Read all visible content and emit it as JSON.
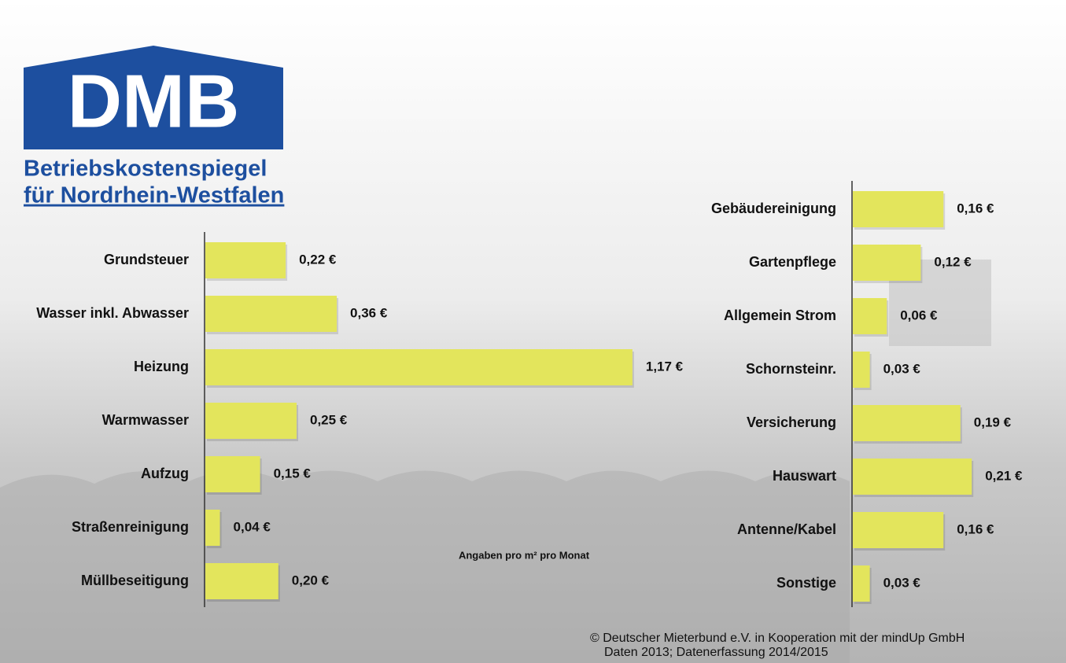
{
  "logo": {
    "mark": "DMB",
    "line1": "Betriebskostenspiegel",
    "line2": "für Nordrhein-Westfalen"
  },
  "note": "Angaben pro m² pro Monat",
  "source": {
    "line1": "© Deutscher Mieterbund e.V. in Kooperation mit der mindUp GmbH",
    "line2": "Daten 2013; Datenerfassung 2014/2015"
  },
  "chart_data": [
    {
      "type": "bar",
      "orientation": "horizontal",
      "color": "#e3e55c",
      "categories": [
        "Grundsteuer",
        "Wasser inkl. Abwasser",
        "Heizung",
        "Warmwasser",
        "Aufzug",
        "Straßenreinigung",
        "Müllbeseitigung"
      ],
      "values": [
        0.22,
        0.36,
        1.17,
        0.25,
        0.15,
        0.04,
        0.2
      ],
      "value_labels": [
        "0,22 €",
        "0,36 €",
        "1,17 €",
        "0,25 €",
        "0,15 €",
        "0,04 €",
        "0,20 €"
      ]
    },
    {
      "type": "bar",
      "orientation": "horizontal",
      "color": "#e3e55c",
      "categories": [
        "Gebäudereinigung",
        "Gartenpflege",
        "Allgemein Strom",
        "Schornsteinr.",
        "Versicherung",
        "Hauswart",
        "Antenne/Kabel",
        "Sonstige"
      ],
      "values": [
        0.16,
        0.12,
        0.06,
        0.03,
        0.19,
        0.21,
        0.16,
        0.03
      ],
      "value_labels": [
        "0,16 €",
        "0,12 €",
        "0,06 €",
        "0,03 €",
        "0,19 €",
        "0,21 €",
        "0,16 €",
        "0,03 €"
      ]
    }
  ]
}
